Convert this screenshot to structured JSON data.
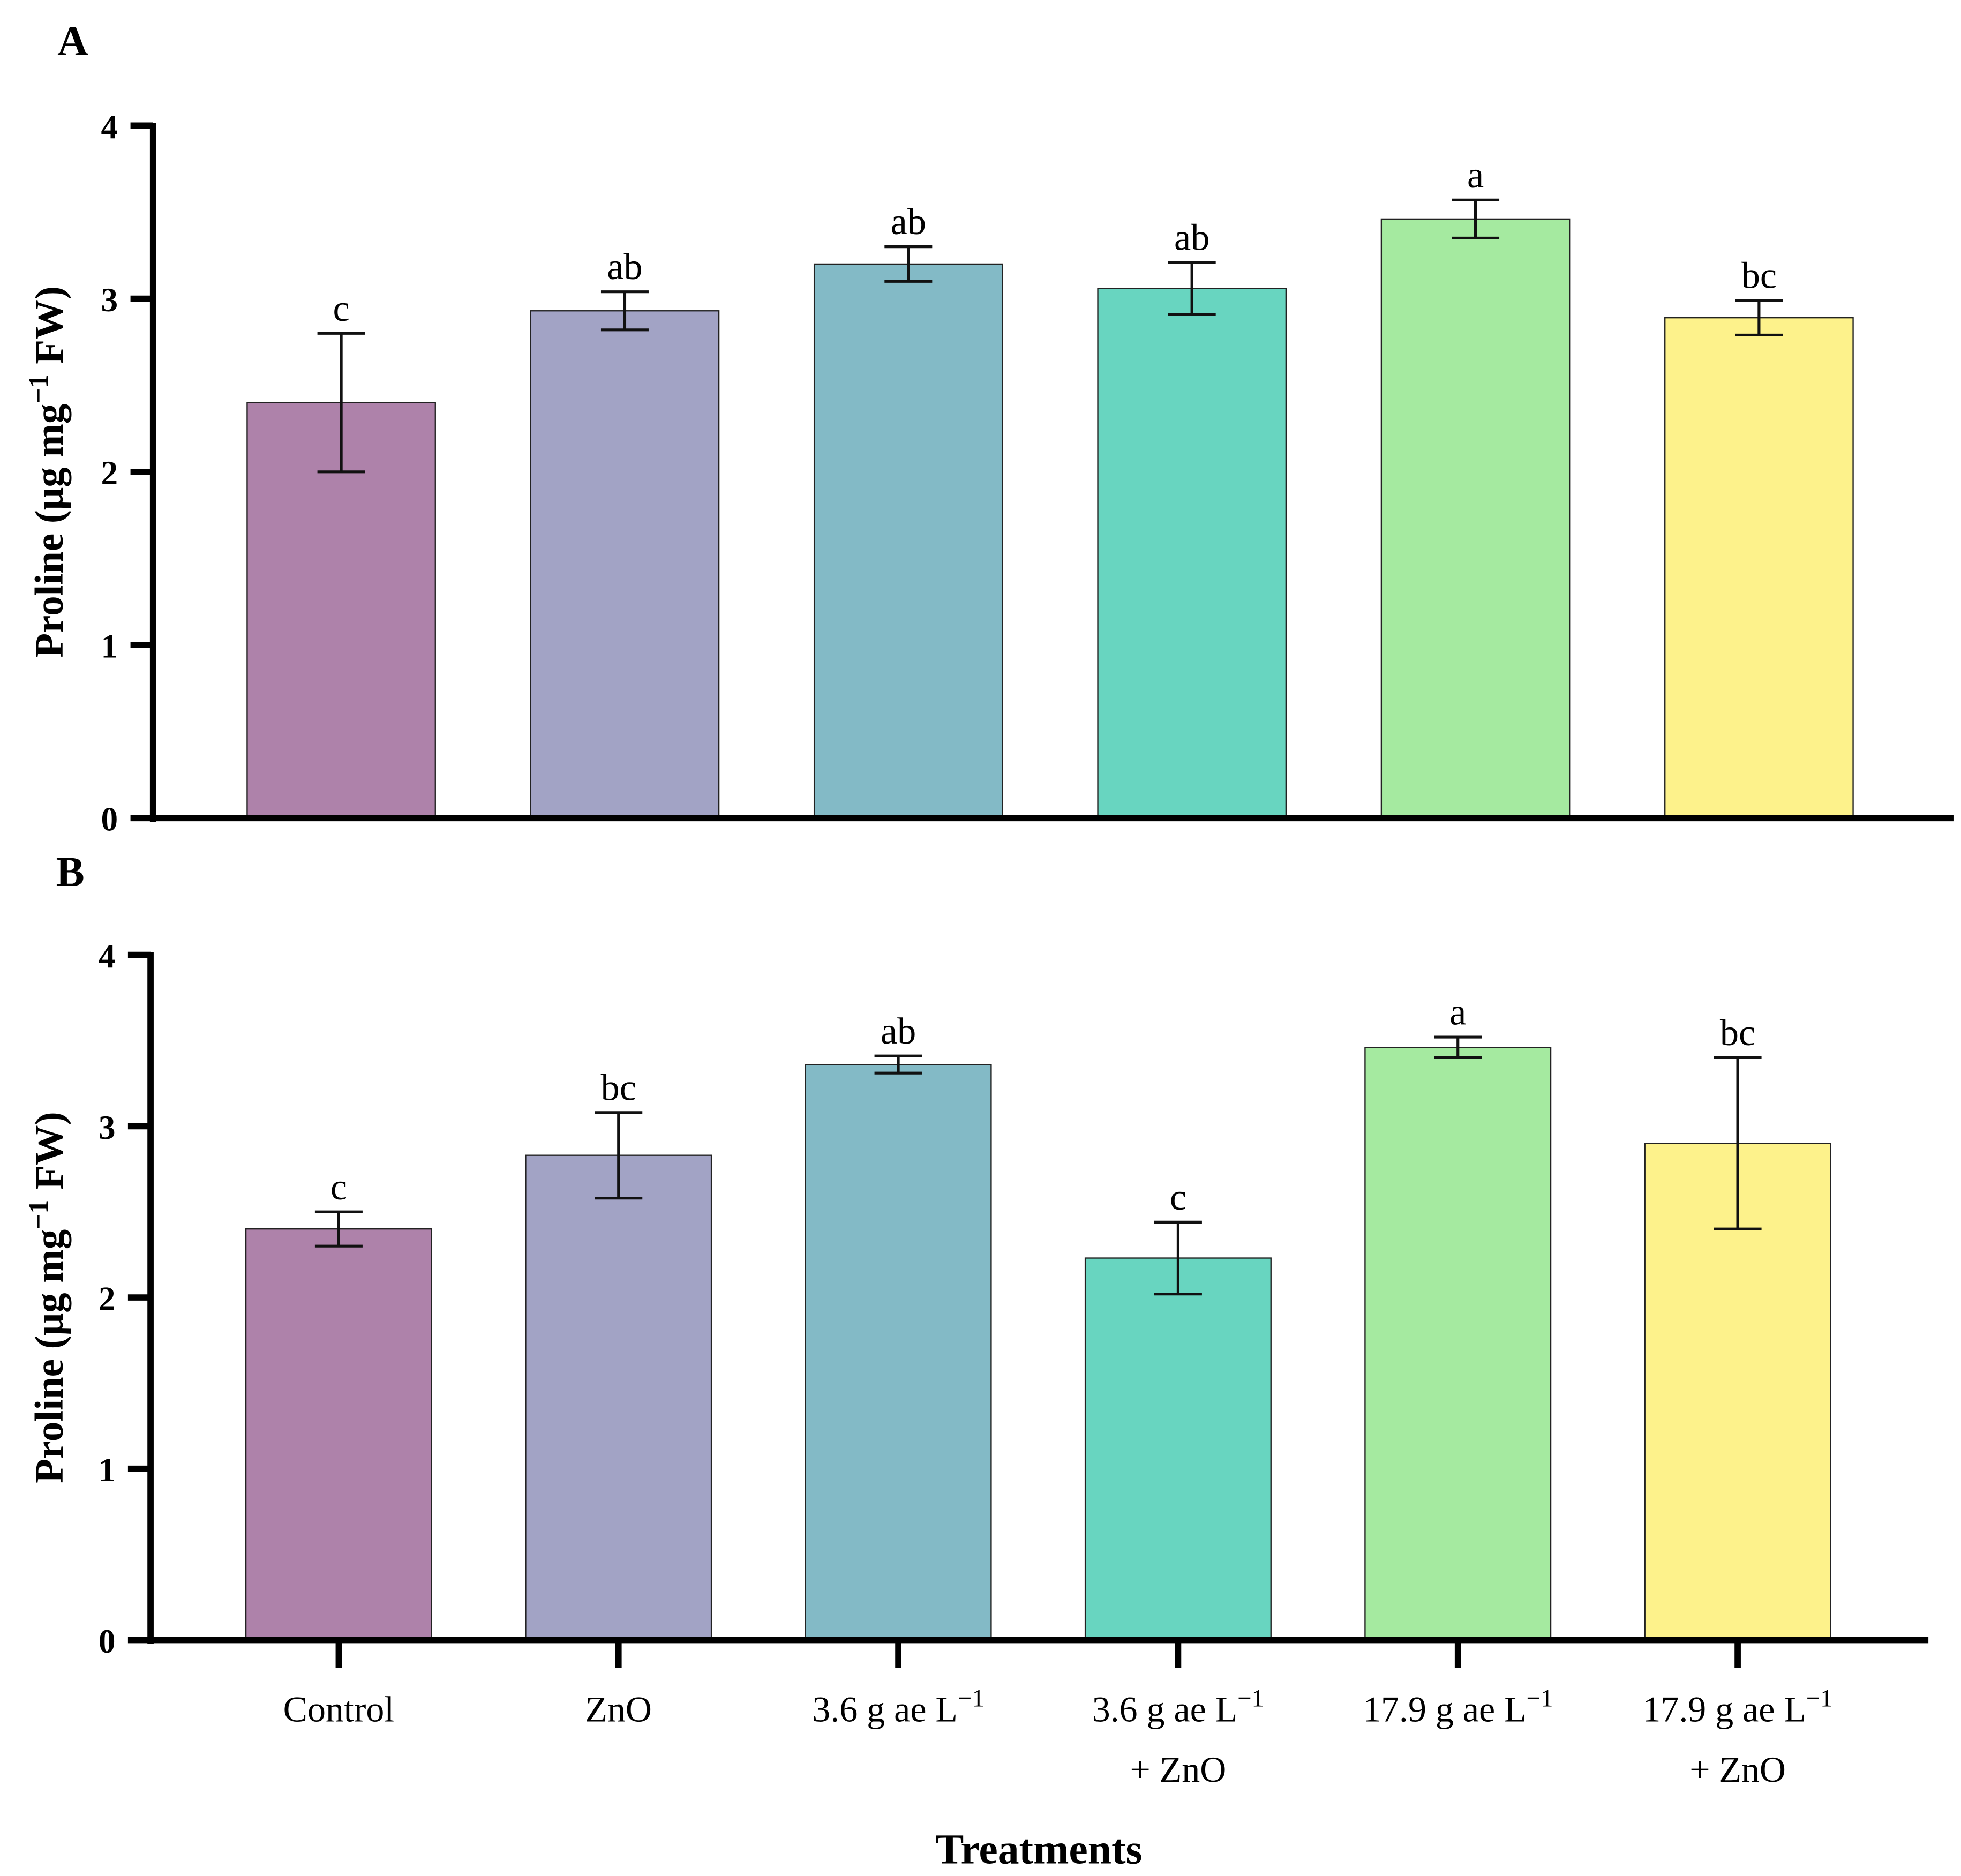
{
  "chart_data": {
    "type": "bar",
    "xlabel": "Treatments",
    "categories": [
      {
        "line1": "Control",
        "sup": "",
        "line2": ""
      },
      {
        "line1": "ZnO",
        "sup": "",
        "line2": ""
      },
      {
        "line1": "3.6 g ae L",
        "sup": "−1",
        "line2": ""
      },
      {
        "line1": "3.6 g ae L",
        "sup": "−1",
        "line2": "+ ZnO"
      },
      {
        "line1": "17.9 g ae L",
        "sup": "−1",
        "line2": ""
      },
      {
        "line1": "17.9 g ae L",
        "sup": "−1",
        "line2": "+ ZnO"
      }
    ],
    "colors": [
      "#ae82aa",
      "#a2a3c5",
      "#83bac6",
      "#68d5c0",
      "#a5eaa0",
      "#fdf28b"
    ],
    "ylabel": {
      "main": "Proline (μg mg",
      "sup": "−1",
      "tail": " FW)"
    },
    "ylim": [
      0,
      4
    ],
    "yticks": [
      "0",
      "1",
      "2",
      "3",
      "4"
    ],
    "panels": [
      {
        "label": "A",
        "values": [
          2.4,
          2.93,
          3.2,
          3.06,
          3.46,
          2.89
        ],
        "errors": [
          0.4,
          0.11,
          0.1,
          0.15,
          0.11,
          0.1
        ],
        "letters": [
          "c",
          "ab",
          "ab",
          "ab",
          "a",
          "bc"
        ]
      },
      {
        "label": "B",
        "values": [
          2.4,
          2.83,
          3.36,
          2.23,
          3.46,
          2.9
        ],
        "errors": [
          0.1,
          0.25,
          0.05,
          0.21,
          0.06,
          0.5
        ],
        "letters": [
          "c",
          "bc",
          "ab",
          "c",
          "a",
          "bc"
        ]
      }
    ]
  }
}
